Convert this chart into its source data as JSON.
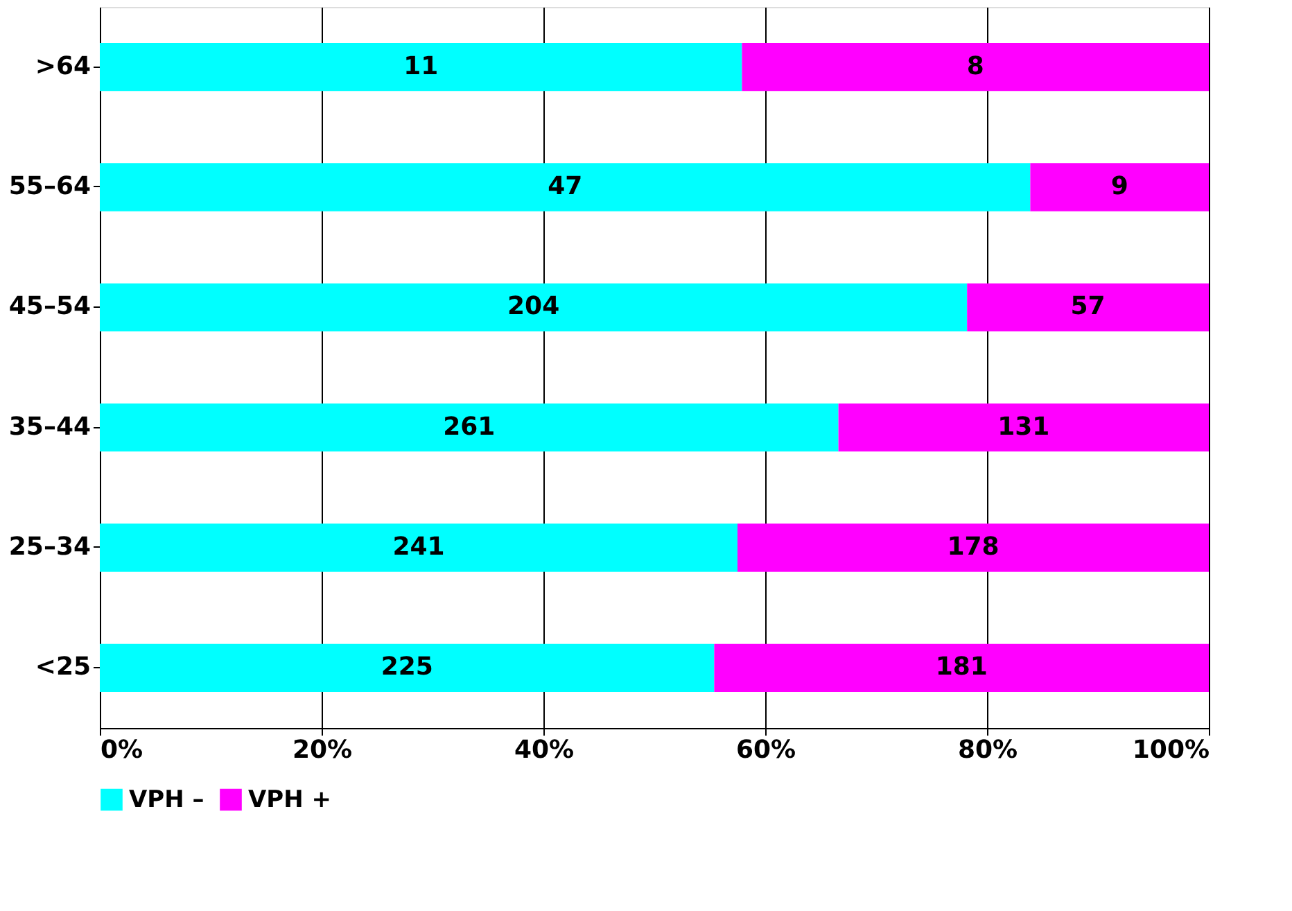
{
  "chart_data": {
    "type": "bar",
    "orientation": "horizontal",
    "stacked": true,
    "categories": [
      ">64",
      "55–64",
      "45–54",
      "35–44",
      "25–34",
      "<25"
    ],
    "series": [
      {
        "name": "VPH –",
        "color": "#00ffff",
        "values": [
          57.9,
          83.9,
          78.2,
          66.6,
          57.5,
          55.4
        ]
      },
      {
        "name": "VPH +",
        "color": "#ff00ff",
        "values": [
          42.1,
          16.1,
          21.8,
          33.4,
          42.5,
          44.6
        ]
      }
    ],
    "annotations": [
      "11",
      "8",
      "47",
      "9",
      "204",
      "57",
      "261",
      "131",
      "241",
      "178",
      "225",
      "181"
    ],
    "xlim": [
      0,
      100
    ],
    "xticks": [
      {
        "value": 0,
        "label": "0%"
      },
      {
        "value": 20,
        "label": "20%"
      },
      {
        "value": 40,
        "label": "40%"
      },
      {
        "value": 60,
        "label": "60%"
      },
      {
        "value": 80,
        "label": "80%"
      },
      {
        "value": 100,
        "label": "100%"
      }
    ],
    "grid": "x",
    "legend": "bottom"
  }
}
